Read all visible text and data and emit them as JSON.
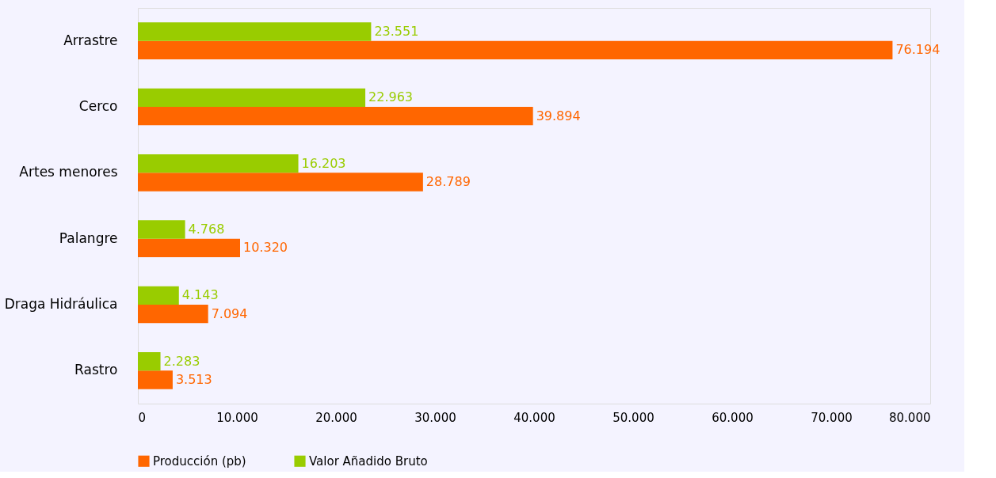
{
  "chart_data": {
    "type": "bar",
    "orientation": "horizontal",
    "categories": [
      "Arrastre",
      "Cerco",
      "Artes menores",
      "Palangre",
      "Draga Hidráulica",
      "Rastro"
    ],
    "series": [
      {
        "name": "Producción (pb)",
        "color": "#ff6600",
        "values": [
          76194,
          39894,
          28789,
          10320,
          7094,
          3513
        ],
        "value_labels": [
          "76.194",
          "39.894",
          "28.789",
          "10.320",
          "7.094",
          "3.513"
        ]
      },
      {
        "name": "Valor Añadido Bruto",
        "color": "#99cc00",
        "values": [
          23551,
          22963,
          16203,
          4768,
          4143,
          2283
        ],
        "value_labels": [
          "23.551",
          "22.963",
          "16.203",
          "4.768",
          "4.143",
          "2.283"
        ]
      }
    ],
    "xlim": [
      0,
      80000
    ],
    "xticks": [
      0,
      {
        "value": 10000,
        "label": "10.000"
      },
      {
        "value": 20000,
        "label": "20.000"
      },
      {
        "value": 30000,
        "label": "30.000"
      },
      {
        "value": 40000,
        "label": "40.000"
      },
      {
        "value": 50000,
        "label": "50.000"
      },
      {
        "value": 60000,
        "label": "60.000"
      },
      {
        "value": 70000,
        "label": "70.000"
      },
      {
        "value": 80000,
        "label": "80.000"
      }
    ],
    "grid": false,
    "legend": "bottom"
  }
}
